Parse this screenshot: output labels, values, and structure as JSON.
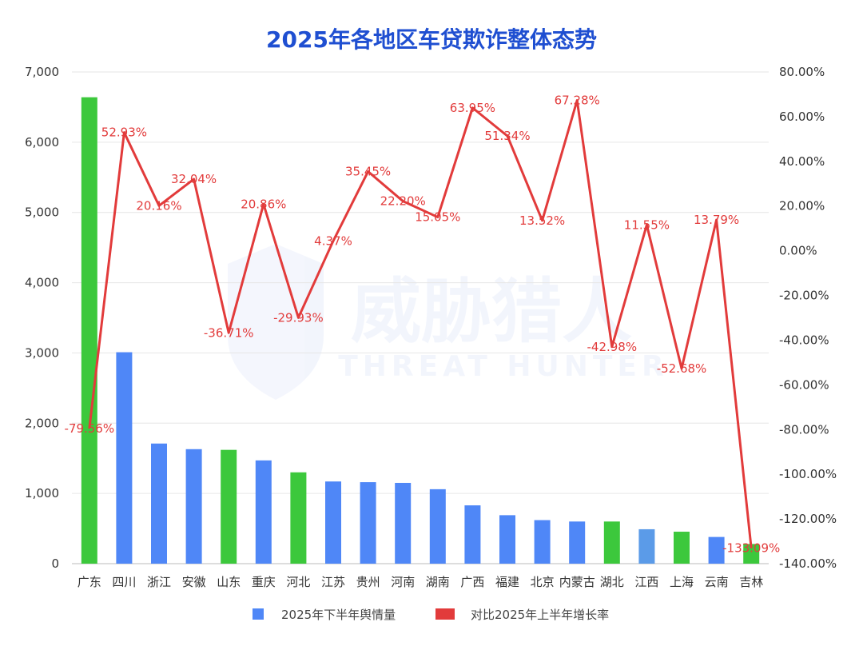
{
  "chart_data": {
    "type": "bar+line",
    "title": "2025年各地区车贷欺诈整体态势",
    "categories": [
      "广东",
      "四川",
      "浙江",
      "安徽",
      "山东",
      "重庆",
      "河北",
      "江苏",
      "贵州",
      "河南",
      "湖南",
      "广西",
      "福建",
      "北京",
      "内蒙古",
      "湖北",
      "江西",
      "上海",
      "云南",
      "吉林"
    ],
    "series": [
      {
        "name": "2025年下半年舆情量",
        "type": "bar",
        "axis": "left",
        "values": [
          6640,
          3010,
          1710,
          1630,
          1620,
          1470,
          1300,
          1170,
          1160,
          1150,
          1060,
          830,
          690,
          620,
          600,
          600,
          490,
          455,
          380,
          280
        ],
        "colors": [
          "#3cc83c",
          "#4f87f7",
          "#4f87f7",
          "#4f87f7",
          "#3cc83c",
          "#4f87f7",
          "#3cc83c",
          "#4f87f7",
          "#4f87f7",
          "#4f87f7",
          "#4f87f7",
          "#4f87f7",
          "#4f87f7",
          "#4f87f7",
          "#4f87f7",
          "#3cc83c",
          "#5b9be8",
          "#3cc83c",
          "#4f87f7",
          "#3cc83c"
        ]
      },
      {
        "name": "对比2025年上半年增长率",
        "type": "line",
        "axis": "right",
        "values": [
          -79.56,
          52.93,
          20.16,
          32.04,
          -36.71,
          20.86,
          -29.93,
          4.37,
          35.45,
          22.2,
          15.05,
          63.95,
          51.34,
          13.52,
          67.28,
          -42.98,
          11.55,
          -52.68,
          13.79,
          -133.09
        ],
        "labels": [
          "-79.56%",
          "52.93%",
          "20.16%",
          "32.04%",
          "-36.71%",
          "20.86%",
          "-29.93%",
          "4.37%",
          "35.45%",
          "22.20%",
          "15.05%",
          "63.95%",
          "51.34%",
          "13.52%",
          "67.28%",
          "-42.98%",
          "11.55%",
          "-52.68%",
          "13.79%",
          "-133.09%"
        ],
        "color": "#e23b3b"
      }
    ],
    "y_left": {
      "min": 0,
      "max": 7000,
      "ticks": [
        0,
        1000,
        2000,
        3000,
        4000,
        5000,
        6000,
        7000
      ],
      "tick_labels": [
        "0",
        "1,000",
        "2,000",
        "3,000",
        "4,000",
        "5,000",
        "6,000",
        "7,000"
      ]
    },
    "y_right": {
      "min": -140,
      "max": 80,
      "ticks": [
        80,
        60,
        40,
        20,
        0,
        -20,
        -40,
        -60,
        -80,
        -100,
        -120,
        -140
      ],
      "tick_labels": [
        "80.00%",
        "60.00%",
        "40.00%",
        "20.00%",
        "0.00%",
        "-20.00%",
        "-40.00%",
        "-60.00%",
        "-80.00%",
        "-100.00%",
        "-120.00%",
        "-140.00%"
      ]
    },
    "grid": true,
    "legend": {
      "placement": "bottom-center",
      "items": [
        {
          "label": "2025年下半年舆情量",
          "color": "#4f87f7"
        },
        {
          "label": "对比2025年上半年增长率",
          "color": "#e23b3b"
        }
      ]
    },
    "watermark": {
      "text_cn": "威胁猎人",
      "text_en": "THREAT HUNTER"
    }
  }
}
